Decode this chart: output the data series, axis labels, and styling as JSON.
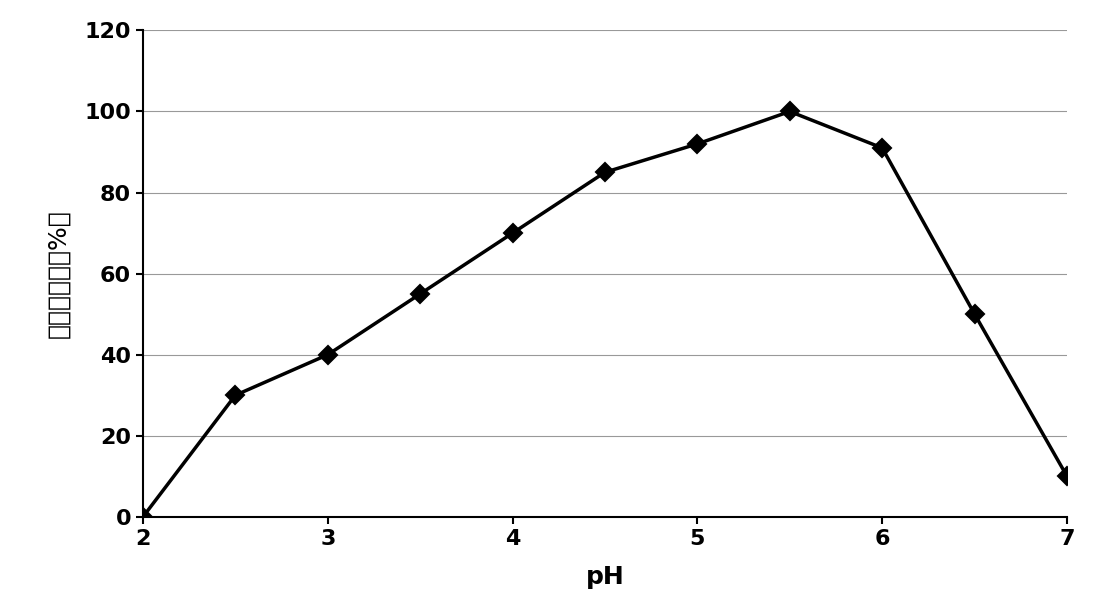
{
  "x": [
    2.0,
    2.5,
    3.0,
    3.5,
    4.0,
    4.5,
    5.0,
    5.5,
    6.0,
    6.5,
    7.0
  ],
  "y": [
    0,
    30,
    40,
    55,
    70,
    85,
    92,
    100,
    91,
    50,
    10
  ],
  "xlabel": "pH",
  "ylabel": "相对酶活力（%）",
  "xlim": [
    2,
    7
  ],
  "ylim": [
    0,
    120
  ],
  "xticks": [
    2,
    3,
    4,
    5,
    6,
    7
  ],
  "yticks": [
    0,
    20,
    40,
    60,
    80,
    100,
    120
  ],
  "line_color": "#000000",
  "marker": "D",
  "marker_size": 9,
  "marker_facecolor": "#000000",
  "linewidth": 2.5,
  "background_color": "#ffffff",
  "grid_color": "#999999",
  "xlabel_fontsize": 18,
  "ylabel_fontsize": 18,
  "tick_fontsize": 16
}
